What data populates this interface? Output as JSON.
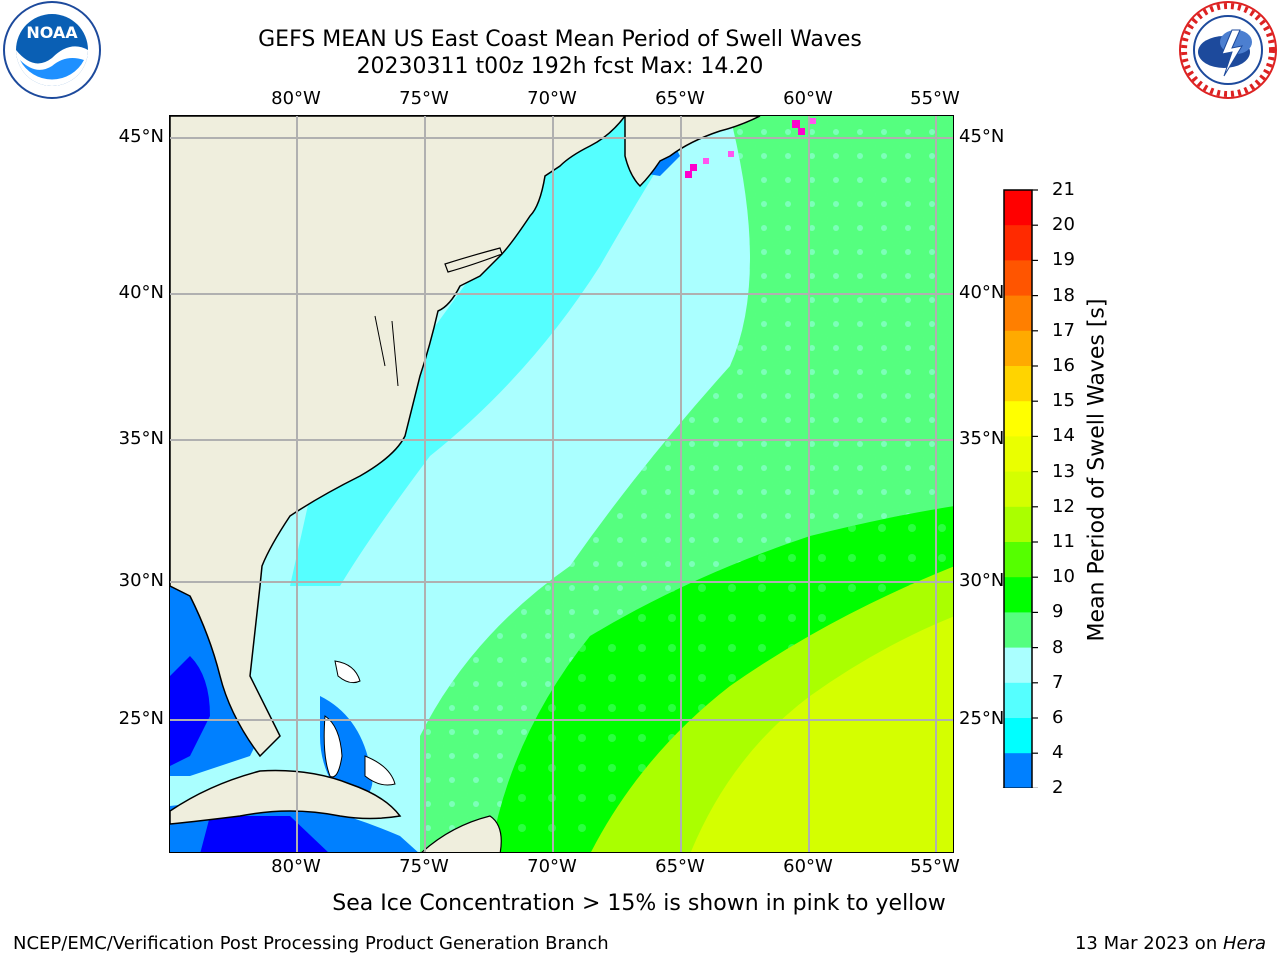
{
  "header": {
    "title_line1": "GEFS MEAN US East Coast Mean Period of Swell Waves",
    "title_line2": "20230311 t00z 192h fcst   Max: 14.20"
  },
  "logos": {
    "left": "noaa-logo",
    "right": "nws-logo"
  },
  "map": {
    "lon_ticks": [
      "80°W",
      "75°W",
      "70°W",
      "65°W",
      "60°W",
      "55°W"
    ],
    "lat_ticks": [
      "45°N",
      "40°N",
      "35°N",
      "30°N",
      "25°N"
    ],
    "land_color": "#efeedd",
    "grid_color": "#b0b0b0"
  },
  "colorbar": {
    "label": "Mean Period of Swell Waves [s]",
    "ticks": [
      "21",
      "20",
      "19",
      "18",
      "17",
      "16",
      "15",
      "14",
      "13",
      "12",
      "11",
      "10",
      "9",
      "8",
      "7",
      "6",
      "4",
      "2"
    ],
    "colors": [
      "#ff0000",
      "#ff2a00",
      "#ff5500",
      "#ff7f00",
      "#ffaa00",
      "#ffd400",
      "#ffff00",
      "#eaff00",
      "#d4ff00",
      "#aaff00",
      "#55ff00",
      "#00ff00",
      "#55ff7f",
      "#aaffff",
      "#55ffff",
      "#00ffff",
      "#0080ff"
    ],
    "under_color": "#0000ff"
  },
  "notes": {
    "ice": "Sea Ice Concentration > 15% is shown in pink to yellow"
  },
  "footer": {
    "left": "NCEP/EMC/Verification Post Processing Product Generation Branch",
    "right_date": "13 Mar 2023 on ",
    "right_host": "Hera"
  }
}
